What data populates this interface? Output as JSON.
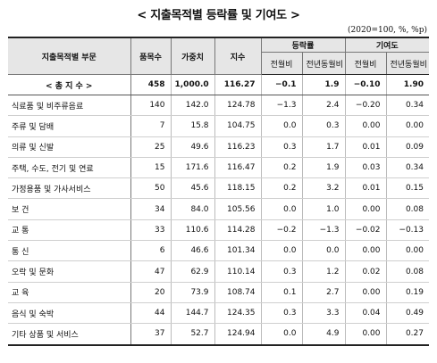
{
  "title": "< 지출목적별 등락률 및 기여도 >",
  "unit": "(2020=100, %, %p)",
  "headers": {
    "category": "지출목적별 부문",
    "items": "품목수",
    "weight": "가중치",
    "index": "지수",
    "change_group": "등락률",
    "contrib_group": "기여도",
    "mom": "전월비",
    "yoy": "전년동월비",
    "mom2": "전월비",
    "yoy2": "전년동월비"
  },
  "total": {
    "label": "< 총 지 수 >",
    "items": "458",
    "weight": "1,000.0",
    "index": "116.27",
    "mom": "−0.1",
    "yoy": "1.9",
    "c_mom": "−0.10",
    "c_yoy": "1.90"
  },
  "rows": [
    {
      "label": "식료품 및 비주류음료",
      "items": "140",
      "weight": "142.0",
      "index": "124.78",
      "mom": "−1.3",
      "yoy": "2.4",
      "c_mom": "−0.20",
      "c_yoy": "0.34"
    },
    {
      "label": "주류 및 담배",
      "items": "7",
      "weight": "15.8",
      "index": "104.75",
      "mom": "0.0",
      "yoy": "0.3",
      "c_mom": "0.00",
      "c_yoy": "0.00"
    },
    {
      "label": "의류 및 신발",
      "items": "25",
      "weight": "49.6",
      "index": "116.23",
      "mom": "0.3",
      "yoy": "1.7",
      "c_mom": "0.01",
      "c_yoy": "0.09"
    },
    {
      "label": "주택, 수도, 전기 및 연료",
      "items": "15",
      "weight": "171.6",
      "index": "116.47",
      "mom": "0.2",
      "yoy": "1.9",
      "c_mom": "0.03",
      "c_yoy": "0.34"
    },
    {
      "label": "가정용품 및 가사서비스",
      "items": "50",
      "weight": "45.6",
      "index": "118.15",
      "mom": "0.2",
      "yoy": "3.2",
      "c_mom": "0.01",
      "c_yoy": "0.15"
    },
    {
      "label": "보      건",
      "items": "34",
      "weight": "84.0",
      "index": "105.56",
      "mom": "0.0",
      "yoy": "1.0",
      "c_mom": "0.00",
      "c_yoy": "0.08"
    },
    {
      "label": "교      통",
      "items": "33",
      "weight": "110.6",
      "index": "114.28",
      "mom": "−0.2",
      "yoy": "−1.3",
      "c_mom": "−0.02",
      "c_yoy": "−0.13"
    },
    {
      "label": "통      신",
      "items": "6",
      "weight": "46.6",
      "index": "101.34",
      "mom": "0.0",
      "yoy": "0.0",
      "c_mom": "0.00",
      "c_yoy": "0.00"
    },
    {
      "label": "오락 및 문화",
      "items": "47",
      "weight": "62.9",
      "index": "110.14",
      "mom": "0.3",
      "yoy": "1.2",
      "c_mom": "0.02",
      "c_yoy": "0.08"
    },
    {
      "label": "교      육",
      "items": "20",
      "weight": "73.9",
      "index": "108.74",
      "mom": "0.1",
      "yoy": "2.7",
      "c_mom": "0.00",
      "c_yoy": "0.19"
    },
    {
      "label": "음식 및 숙박",
      "items": "44",
      "weight": "144.7",
      "index": "124.35",
      "mom": "0.3",
      "yoy": "3.3",
      "c_mom": "0.04",
      "c_yoy": "0.49"
    },
    {
      "label": "기타 상품 및 서비스",
      "items": "37",
      "weight": "52.7",
      "index": "124.94",
      "mom": "0.0",
      "yoy": "4.9",
      "c_mom": "0.00",
      "c_yoy": "0.27"
    }
  ]
}
